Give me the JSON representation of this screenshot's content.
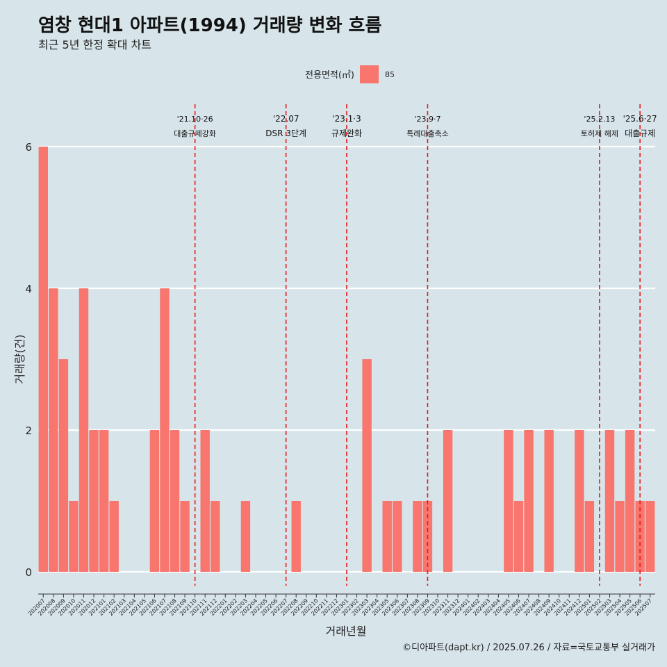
{
  "title": "염창 현대1 아파트(1994) 거래량 변화 흐름",
  "subtitle": "최근 5년 한정 확대 차트",
  "caption": "©디아파트(dapt.kr) / 2025.07.26 / 자료=국토교통부 실거래가",
  "colors": {
    "bar": "#f8766d",
    "event_line": "#e41a1c",
    "background": "#d7e4ea",
    "grid": "#ffffff"
  },
  "chart_data": {
    "type": "bar",
    "xlabel": "거래년월",
    "ylabel": "거래량(건)",
    "ylim": [
      0,
      6
    ],
    "yticks": [
      0,
      2,
      4,
      6
    ],
    "legend": {
      "title": "전용면적(㎡)",
      "entries": [
        "85"
      ],
      "placement": "top"
    },
    "categories": [
      "202007",
      "202008",
      "202009",
      "202010",
      "202011",
      "202012",
      "202101",
      "202102",
      "202103",
      "202104",
      "202105",
      "202106",
      "202107",
      "202108",
      "202109",
      "202110",
      "202111",
      "202112",
      "202201",
      "202202",
      "202203",
      "202204",
      "202205",
      "202206",
      "202207",
      "202208",
      "202209",
      "202210",
      "202211",
      "202212",
      "202301",
      "202302",
      "202303",
      "202304",
      "202305",
      "202306",
      "202307",
      "202308",
      "202309",
      "202310",
      "202311",
      "202312",
      "202401",
      "202402",
      "202403",
      "202404",
      "202405",
      "202406",
      "202407",
      "202408",
      "202409",
      "202410",
      "202411",
      "202412",
      "202501",
      "202502",
      "202503",
      "202504",
      "202505",
      "202506",
      "202507"
    ],
    "series": [
      {
        "name": "85",
        "values": [
          6,
          4,
          3,
          1,
          4,
          2,
          2,
          1,
          0,
          0,
          0,
          2,
          4,
          2,
          1,
          0,
          2,
          1,
          0,
          0,
          1,
          0,
          0,
          0,
          0,
          1,
          0,
          0,
          0,
          0,
          0,
          0,
          3,
          0,
          1,
          1,
          0,
          1,
          1,
          0,
          2,
          0,
          0,
          0,
          0,
          0,
          2,
          1,
          2,
          0,
          2,
          0,
          0,
          2,
          1,
          0,
          2,
          1,
          2,
          1,
          1
        ]
      }
    ],
    "events": [
      {
        "x": 15.5,
        "date": "'21.10·26",
        "label": "대출규제강화"
      },
      {
        "x": 24.5,
        "date": "'22.07",
        "label": "DSR 3단계"
      },
      {
        "x": 30.5,
        "date": "'23.1·3",
        "label": "규제완화"
      },
      {
        "x": 38.5,
        "date": "'23.9·7",
        "label": "특례대출축소"
      },
      {
        "x": 55.5,
        "date": "'25.2.13",
        "label": "토허제 해제"
      },
      {
        "x": 59.5,
        "date": "'25.6·27",
        "label": "대출규제"
      }
    ]
  }
}
